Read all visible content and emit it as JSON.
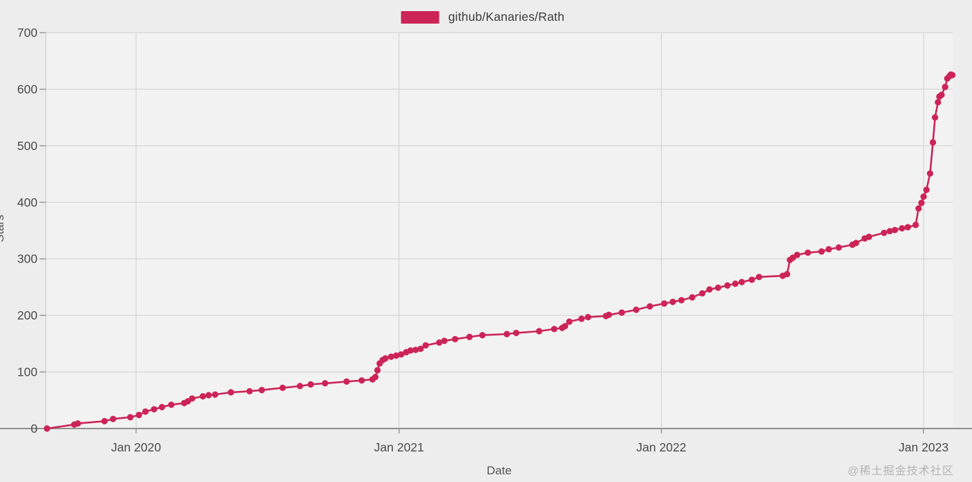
{
  "page": {
    "background": "#ededed",
    "plot_background": "#f2f2f2",
    "watermark": "@稀土掘金技术社区"
  },
  "legend": {
    "label": "github/Kanaries/Rath",
    "swatch_color": "#cc2457",
    "position": "top-center"
  },
  "chart_data": {
    "type": "line",
    "title": "",
    "xlabel": "Date",
    "ylabel": "Stars",
    "grid": true,
    "marker": "circle",
    "ylim": [
      0,
      700
    ],
    "xlim": [
      "2019-08-26",
      "2023-02-14"
    ],
    "y_ticks": [
      0,
      100,
      200,
      300,
      400,
      500,
      600,
      700
    ],
    "x_ticks": [
      {
        "date": "2020-01-01",
        "label": "Jan 2020"
      },
      {
        "date": "2021-01-01",
        "label": "Jan 2021"
      },
      {
        "date": "2022-01-01",
        "label": "Jan 2022"
      },
      {
        "date": "2023-01-01",
        "label": "Jan 2023"
      }
    ],
    "series": [
      {
        "name": "github/Kanaries/Rath",
        "color": "#cc2457",
        "points": [
          [
            "2019-08-30",
            0
          ],
          [
            "2019-10-07",
            7
          ],
          [
            "2019-10-12",
            9
          ],
          [
            "2019-11-18",
            13
          ],
          [
            "2019-11-30",
            17
          ],
          [
            "2019-12-24",
            20
          ],
          [
            "2020-01-05",
            24
          ],
          [
            "2020-01-14",
            30
          ],
          [
            "2020-01-26",
            34
          ],
          [
            "2020-02-06",
            38
          ],
          [
            "2020-02-19",
            42
          ],
          [
            "2020-03-08",
            45
          ],
          [
            "2020-03-13",
            48
          ],
          [
            "2020-03-19",
            53
          ],
          [
            "2020-04-03",
            57
          ],
          [
            "2020-04-11",
            59
          ],
          [
            "2020-04-20",
            60
          ],
          [
            "2020-05-12",
            64
          ],
          [
            "2020-06-07",
            66
          ],
          [
            "2020-06-24",
            68
          ],
          [
            "2020-07-23",
            72
          ],
          [
            "2020-08-16",
            75
          ],
          [
            "2020-08-31",
            78
          ],
          [
            "2020-09-20",
            80
          ],
          [
            "2020-10-20",
            83
          ],
          [
            "2020-11-10",
            85
          ],
          [
            "2020-11-25",
            87
          ],
          [
            "2020-11-29",
            91
          ],
          [
            "2020-12-02",
            103
          ],
          [
            "2020-12-05",
            115
          ],
          [
            "2020-12-09",
            121
          ],
          [
            "2020-12-13",
            124
          ],
          [
            "2020-12-21",
            127
          ],
          [
            "2020-12-28",
            129
          ],
          [
            "2021-01-04",
            131
          ],
          [
            "2021-01-11",
            135
          ],
          [
            "2021-01-17",
            138
          ],
          [
            "2021-01-24",
            139
          ],
          [
            "2021-01-31",
            141
          ],
          [
            "2021-02-07",
            147
          ],
          [
            "2021-02-26",
            152
          ],
          [
            "2021-03-05",
            155
          ],
          [
            "2021-03-20",
            158
          ],
          [
            "2021-04-09",
            162
          ],
          [
            "2021-04-27",
            165
          ],
          [
            "2021-05-31",
            167
          ],
          [
            "2021-06-13",
            169
          ],
          [
            "2021-07-15",
            172
          ],
          [
            "2021-08-05",
            176
          ],
          [
            "2021-08-16",
            178
          ],
          [
            "2021-08-20",
            181
          ],
          [
            "2021-08-26",
            189
          ],
          [
            "2021-09-12",
            194
          ],
          [
            "2021-09-21",
            197
          ],
          [
            "2021-10-16",
            199
          ],
          [
            "2021-10-20",
            201
          ],
          [
            "2021-11-07",
            205
          ],
          [
            "2021-11-27",
            210
          ],
          [
            "2021-12-16",
            216
          ],
          [
            "2022-01-05",
            221
          ],
          [
            "2022-01-17",
            224
          ],
          [
            "2022-01-29",
            227
          ],
          [
            "2022-02-13",
            232
          ],
          [
            "2022-02-27",
            239
          ],
          [
            "2022-03-09",
            246
          ],
          [
            "2022-03-21",
            249
          ],
          [
            "2022-04-03",
            253
          ],
          [
            "2022-04-14",
            256
          ],
          [
            "2022-04-23",
            259
          ],
          [
            "2022-05-07",
            263
          ],
          [
            "2022-05-17",
            268
          ],
          [
            "2022-06-19",
            270
          ],
          [
            "2022-06-25",
            273
          ],
          [
            "2022-06-29",
            298
          ],
          [
            "2022-07-03",
            302
          ],
          [
            "2022-07-09",
            307
          ],
          [
            "2022-07-24",
            311
          ],
          [
            "2022-08-12",
            313
          ],
          [
            "2022-08-22",
            317
          ],
          [
            "2022-09-05",
            320
          ],
          [
            "2022-09-24",
            325
          ],
          [
            "2022-09-29",
            328
          ],
          [
            "2022-10-11",
            336
          ],
          [
            "2022-10-17",
            339
          ],
          [
            "2022-11-07",
            346
          ],
          [
            "2022-11-15",
            349
          ],
          [
            "2022-11-22",
            351
          ],
          [
            "2022-12-02",
            354
          ],
          [
            "2022-12-10",
            356
          ],
          [
            "2022-12-21",
            360
          ],
          [
            "2022-12-25",
            389
          ],
          [
            "2022-12-29",
            399
          ],
          [
            "2023-01-01",
            410
          ],
          [
            "2023-01-05",
            422
          ],
          [
            "2023-01-10",
            451
          ],
          [
            "2023-01-14",
            506
          ],
          [
            "2023-01-17",
            550
          ],
          [
            "2023-01-21",
            577
          ],
          [
            "2023-01-23",
            587
          ],
          [
            "2023-01-26",
            590
          ],
          [
            "2023-01-31",
            604
          ],
          [
            "2023-02-03",
            619
          ],
          [
            "2023-02-06",
            623
          ],
          [
            "2023-02-08",
            626
          ],
          [
            "2023-02-10",
            625
          ]
        ]
      }
    ]
  }
}
